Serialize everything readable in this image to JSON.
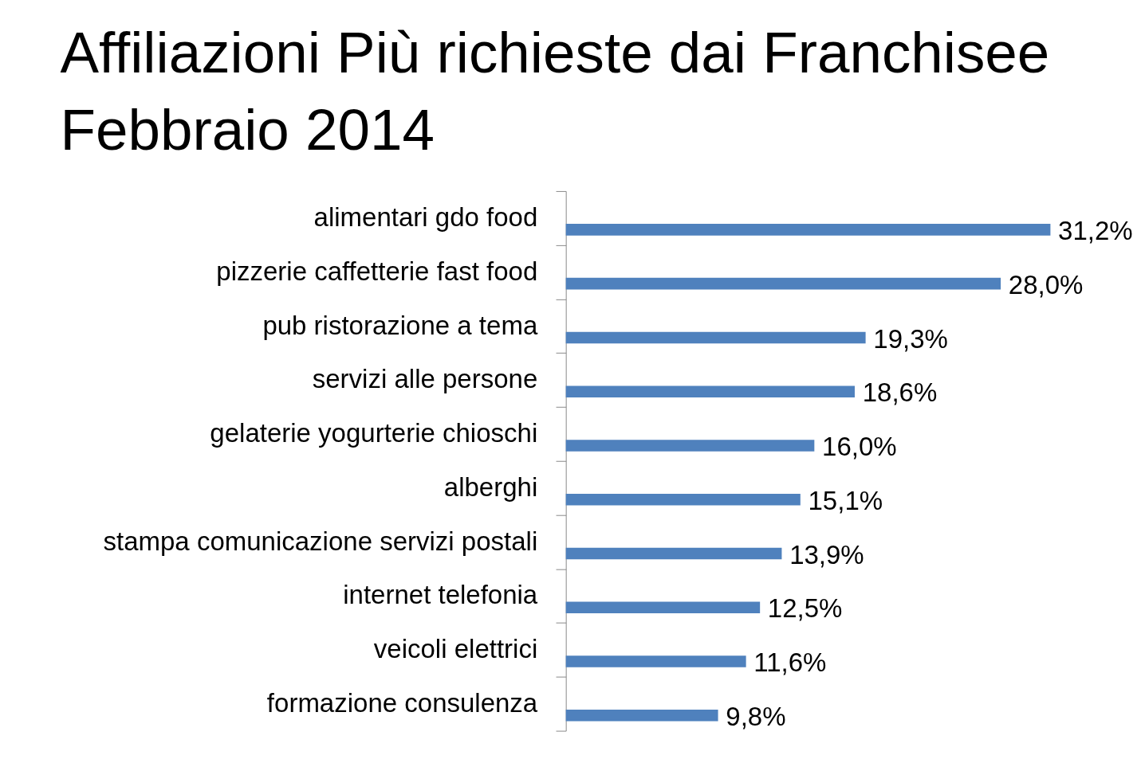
{
  "chart_data": {
    "type": "bar",
    "orientation": "horizontal",
    "title": "Affiliazioni Più richieste dai Franchisee\nFebbraio 2014",
    "categories": [
      "alimentari gdo food",
      "pizzerie caffetterie fast food",
      "pub ristorazione a tema",
      "servizi alle persone",
      "gelaterie yogurterie chioschi",
      "alberghi",
      "stampa comunicazione servizi postali",
      "internet telefonia",
      "veicoli elettrici",
      "formazione consulenza"
    ],
    "values": [
      31.2,
      28.0,
      19.3,
      18.6,
      16.0,
      15.1,
      13.9,
      12.5,
      11.6,
      9.8
    ],
    "value_labels": [
      "31,2%",
      "28,0%",
      "19,3%",
      "18,6%",
      "16,0%",
      "15,1%",
      "13,9%",
      "12,5%",
      "11,6%",
      "9,8%"
    ],
    "color": "#4f81bd"
  }
}
